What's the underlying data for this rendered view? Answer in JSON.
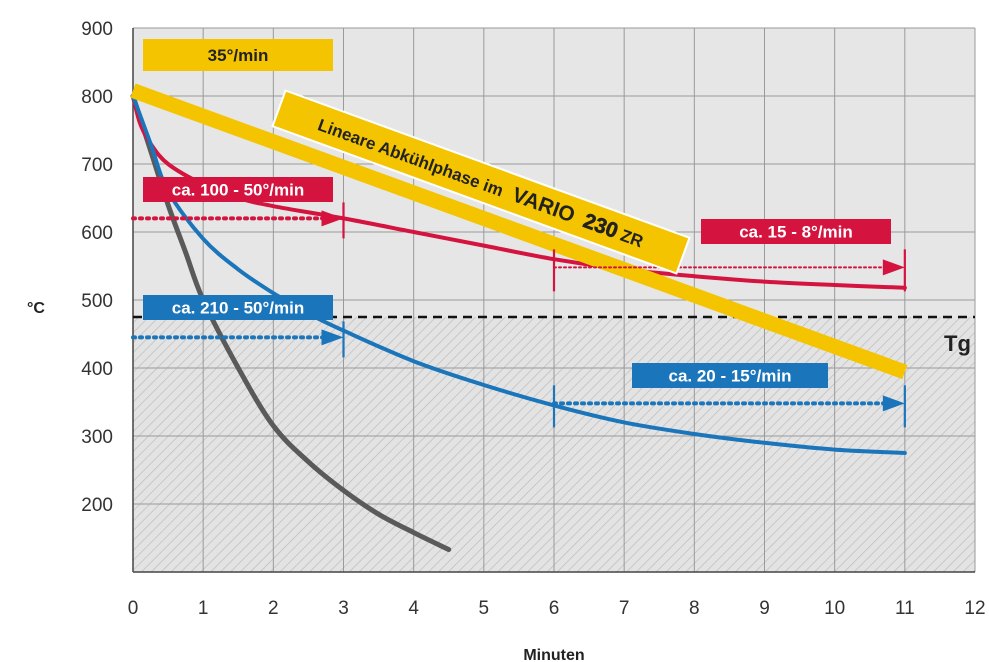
{
  "chart_data": {
    "type": "line",
    "xlabel": "Minuten",
    "ylabel": "°C",
    "xlim": [
      0,
      12
    ],
    "ylim": [
      100,
      900
    ],
    "x_ticks": [
      "0",
      "1",
      "2",
      "3",
      "4",
      "5",
      "6",
      "7",
      "8",
      "9",
      "10",
      "11",
      "12"
    ],
    "y_ticks": [
      "200",
      "300",
      "400",
      "500",
      "600",
      "700",
      "800",
      "900"
    ],
    "grid": true,
    "tg": {
      "label": "Tg",
      "y": 475
    },
    "series": [
      {
        "key": "gray",
        "color": "#5a5a5a",
        "points": [
          [
            0,
            800
          ],
          [
            0.25,
            720
          ],
          [
            0.5,
            640
          ],
          [
            0.75,
            570
          ],
          [
            1,
            500
          ],
          [
            1.5,
            400
          ],
          [
            2,
            315
          ],
          [
            2.5,
            262
          ],
          [
            3,
            220
          ],
          [
            3.5,
            185
          ],
          [
            4,
            158
          ],
          [
            4.5,
            133
          ]
        ]
      },
      {
        "key": "red",
        "color": "#d4133f",
        "points": [
          [
            0,
            800
          ],
          [
            0.1,
            760
          ],
          [
            0.25,
            730
          ],
          [
            0.5,
            700
          ],
          [
            1,
            670
          ],
          [
            1.5,
            650
          ],
          [
            2,
            638
          ],
          [
            3,
            620
          ],
          [
            4,
            600
          ],
          [
            5,
            580
          ],
          [
            6,
            560
          ],
          [
            7,
            545
          ],
          [
            8,
            535
          ],
          [
            9,
            527
          ],
          [
            10,
            522
          ],
          [
            11,
            518
          ]
        ]
      },
      {
        "key": "blue",
        "color": "#1b75bb",
        "points": [
          [
            0,
            800
          ],
          [
            0.25,
            730
          ],
          [
            0.5,
            660
          ],
          [
            1,
            590
          ],
          [
            1.5,
            545
          ],
          [
            2,
            510
          ],
          [
            2.5,
            480
          ],
          [
            3,
            455
          ],
          [
            4,
            410
          ],
          [
            5,
            375
          ],
          [
            6,
            345
          ],
          [
            7,
            320
          ],
          [
            8,
            303
          ],
          [
            9,
            290
          ],
          [
            10,
            280
          ],
          [
            11,
            275
          ]
        ]
      },
      {
        "key": "linear",
        "name": "Lineare Abkühlphase im VARIO 230ZR",
        "color": "#f5c400",
        "points": [
          [
            0,
            808
          ],
          [
            11,
            394
          ]
        ]
      }
    ],
    "annotations": {
      "rate_35": "35°/min",
      "red_early": "ca. 100 - 50°/min",
      "red_late": "ca. 15 - 8°/min",
      "blue_early": "ca. 210 - 50°/min",
      "blue_late": "ca. 20 - 15°/min",
      "linear_label_a": "Lineare Abkühlphase im",
      "linear_label_b": "VARIO",
      "linear_label_c": "230",
      "linear_label_d": "ZR"
    },
    "markers": {
      "red_early_arrow": {
        "from": 0,
        "to": 3,
        "y": 620
      },
      "red_late_arrow": {
        "from": 6,
        "to": 11,
        "y": 548
      },
      "blue_early_arrow": {
        "from": 0,
        "to": 3,
        "y": 445
      },
      "blue_late_arrow": {
        "from": 6,
        "to": 11,
        "y": 348
      }
    }
  }
}
